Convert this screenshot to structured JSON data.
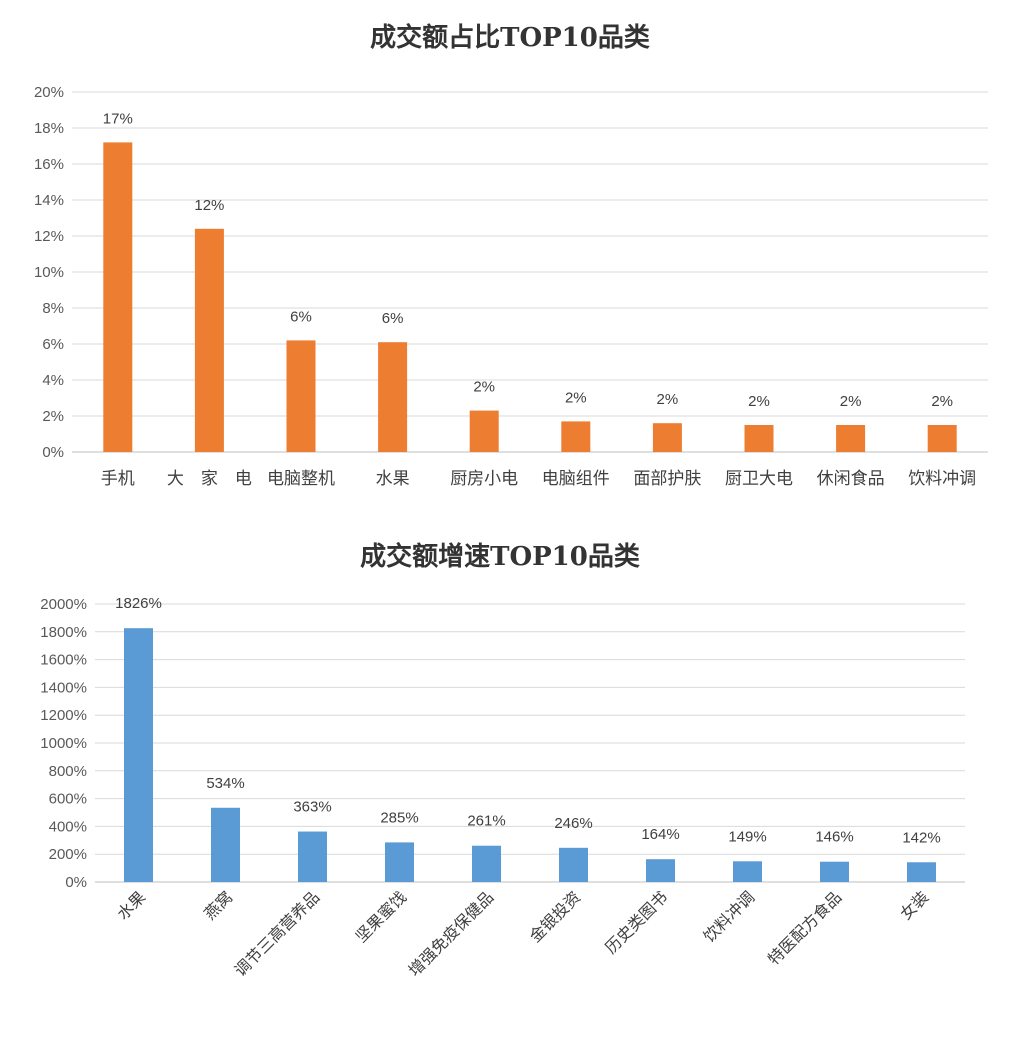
{
  "chart_data": [
    {
      "type": "bar",
      "title": "成交额占比TOP10品类",
      "categories": [
        "手机",
        "大　家　电",
        "电脑整机",
        "水果",
        "厨房小电",
        "电脑组件",
        "面部护肤",
        "厨卫大电",
        "休闲食品",
        "饮料冲调"
      ],
      "values": [
        17.2,
        12.4,
        6.2,
        6.1,
        2.3,
        1.7,
        1.6,
        1.5,
        1.5,
        1.5
      ],
      "data_labels": [
        "17%",
        "12%",
        "6%",
        "6%",
        "2%",
        "2%",
        "2%",
        "2%",
        "2%",
        "2%"
      ],
      "yticks": [
        "0%",
        "2%",
        "4%",
        "6%",
        "8%",
        "10%",
        "12%",
        "14%",
        "16%",
        "18%",
        "20%"
      ],
      "ylim": [
        0,
        20
      ],
      "grid": true,
      "legend": "none",
      "color": "#ed7d31"
    },
    {
      "type": "bar",
      "title": "成交额增速TOP10品类",
      "categories": [
        "水果",
        "燕窝",
        "调节三高营养品",
        "坚果蜜饯",
        "增强免疫保健品",
        "金银投资",
        "历史类图书",
        "饮料冲调",
        "特医配方食品",
        "女装"
      ],
      "values": [
        1826,
        534,
        363,
        285,
        261,
        246,
        164,
        149,
        146,
        142
      ],
      "data_labels": [
        "1826%",
        "534%",
        "363%",
        "285%",
        "261%",
        "246%",
        "164%",
        "149%",
        "146%",
        "142%"
      ],
      "yticks": [
        "0%",
        "200%",
        "400%",
        "600%",
        "800%",
        "1000%",
        "1200%",
        "1400%",
        "1600%",
        "1800%",
        "2000%"
      ],
      "ylim": [
        0,
        2000
      ],
      "grid": true,
      "legend": "none",
      "color": "#5b9bd5"
    }
  ]
}
